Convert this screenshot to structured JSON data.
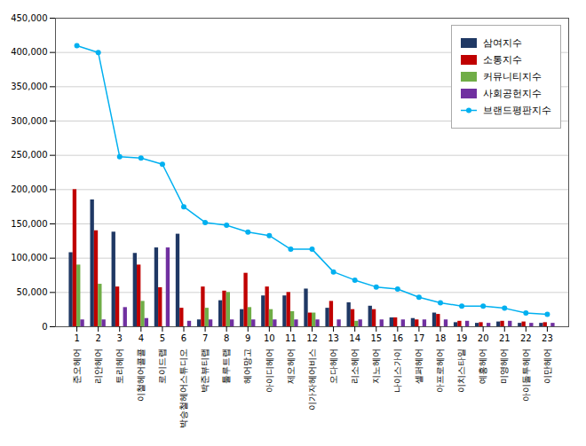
{
  "chart_data": {
    "type": "bar",
    "x": [
      1,
      2,
      3,
      4,
      5,
      6,
      7,
      8,
      9,
      10,
      11,
      12,
      13,
      14,
      15,
      16,
      17,
      18,
      19,
      20,
      21,
      22,
      23
    ],
    "categories": [
      "준오헤어",
      "리안헤어",
      "토리헤어",
      "이철헤어콜콜",
      "로이드랩",
      "박승철헤어스튜디오",
      "박준뷰티랩",
      "툴루트랩",
      "헤어망고",
      "아이디헤어",
      "제오헤어",
      "이가자헤어비스",
      "오다헤어",
      "리소헤어",
      "지노헤어",
      "나이스가이",
      "셀퍼헤어",
      "아프로헤어",
      "이치스타일",
      "예홍헤어",
      "미영헤어",
      "아이돌투헤어",
      "이만헤어"
    ],
    "xlim": [
      0,
      24
    ],
    "xticks": [
      1,
      2,
      3,
      4,
      5,
      6,
      7,
      8,
      9,
      10,
      11,
      12,
      13,
      14,
      15,
      16,
      17,
      18,
      19,
      20,
      21,
      22,
      23
    ],
    "ylim": [
      0,
      450000
    ],
    "yticks": [
      0,
      {
        "value": 50000,
        "label": "50,000"
      },
      {
        "value": 100000,
        "label": "100,000"
      },
      {
        "value": 150000,
        "label": "150,000"
      },
      {
        "value": 200000,
        "label": "200,000"
      },
      {
        "value": 250000,
        "label": "250,000"
      },
      {
        "value": 300000,
        "label": "300,000"
      },
      {
        "value": 350000,
        "label": "350,000"
      },
      {
        "value": 400000,
        "label": "400,000"
      },
      {
        "value": 450000,
        "label": "450,000"
      }
    ],
    "grid": true,
    "legend": "upper right",
    "series": [
      {
        "name": "삼여지수",
        "color": "#1f3864",
        "type": "bar",
        "values": [
          108000,
          185000,
          138000,
          107000,
          115000,
          135000,
          10000,
          38000,
          25000,
          45000,
          45000,
          55000,
          27000,
          35000,
          30000,
          13000,
          12000,
          20000,
          6000,
          5000,
          7000,
          5000,
          5000
        ]
      },
      {
        "name": "소통지수",
        "color": "#c00000",
        "type": "bar",
        "values": [
          200000,
          140000,
          58000,
          90000,
          57000,
          27000,
          58000,
          52000,
          78000,
          58000,
          50000,
          20000,
          37000,
          25000,
          25000,
          13000,
          10000,
          18000,
          8000,
          6000,
          8000,
          7000,
          6000
        ]
      },
      {
        "name": "커뮤니티지수",
        "color": "#70ad47",
        "type": "bar",
        "values": [
          90000,
          62000,
          0,
          37000,
          0,
          0,
          27000,
          50000,
          28000,
          25000,
          22000,
          20000,
          0,
          8000,
          0,
          0,
          0,
          0,
          0,
          0,
          0,
          0,
          0
        ]
      },
      {
        "name": "사회공헌지수",
        "color": "#7030a0",
        "type": "bar",
        "values": [
          10000,
          10000,
          28000,
          12000,
          115000,
          8000,
          10000,
          10000,
          10000,
          10000,
          10000,
          10000,
          10000,
          10000,
          10000,
          10000,
          10000,
          10000,
          8000,
          5000,
          8000,
          5000,
          5000
        ]
      },
      {
        "name": "브랜드평판지수",
        "color": "#00b0f0",
        "type": "line",
        "marker": "circle",
        "values": [
          410000,
          400000,
          248000,
          246000,
          237000,
          175000,
          152000,
          148000,
          138000,
          133000,
          113000,
          113000,
          80000,
          68000,
          58000,
          55000,
          43000,
          35000,
          30000,
          30000,
          27000,
          20000,
          18000
        ]
      }
    ]
  }
}
